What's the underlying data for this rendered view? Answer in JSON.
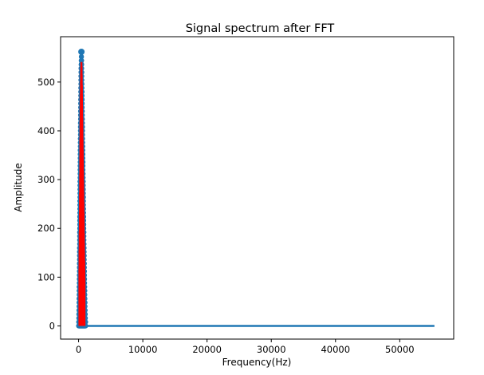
{
  "chart_data": {
    "type": "scatter",
    "title": "Signal spectrum after FFT",
    "xlabel": "Frequency(Hz)",
    "ylabel": "Amplitude",
    "xlim": [
      -2800,
      58400
    ],
    "ylim": [
      -27,
      593
    ],
    "xticks": [
      0,
      10000,
      20000,
      30000,
      40000,
      50000
    ],
    "yticks": [
      0,
      100,
      200,
      300,
      400,
      500
    ],
    "grid": false,
    "colors": {
      "markers": "#1f77b4",
      "stems": "#ff0000",
      "axes": "#000000"
    },
    "peak": {
      "x": 440,
      "y": 562
    },
    "main_band": {
      "x_min": 0,
      "x_max": 1100,
      "y_max": 562
    },
    "baseline": {
      "x_min": 0,
      "x_max": 55400,
      "y": 0
    },
    "series": [
      {
        "x": [
          0,
          60,
          120,
          180,
          240,
          300,
          360,
          400,
          440,
          480,
          520,
          560,
          600,
          660,
          720,
          780,
          840,
          900,
          960,
          1020,
          1080
        ],
        "values": [
          2,
          40,
          120,
          230,
          340,
          440,
          515,
          545,
          562,
          545,
          505,
          465,
          420,
          360,
          300,
          240,
          180,
          130,
          80,
          40,
          8
        ]
      }
    ]
  }
}
